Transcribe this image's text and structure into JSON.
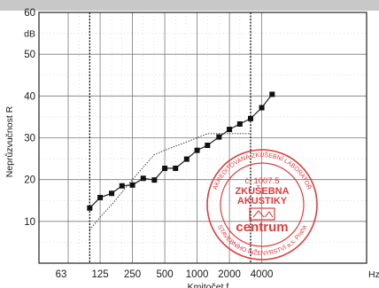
{
  "chart_data": {
    "type": "line",
    "xlabel": "Kmitočet  f",
    "ylabel": "Neprůzvučnost  R",
    "y_unit": "dB",
    "x_unit": "Hz",
    "x_scale": "log",
    "ylim": [
      0,
      60
    ],
    "xlim": [
      50,
      5000
    ],
    "y_ticks": [
      "10",
      "20",
      "30",
      "40",
      "50",
      "60"
    ],
    "x_ticks": [
      "63",
      "125",
      "250",
      "500",
      "1000",
      "2000",
      "4000"
    ],
    "grid": true,
    "series": [
      {
        "name": "",
        "style": "solid-square-markers",
        "x": [
          100,
          125,
          160,
          200,
          250,
          315,
          400,
          500,
          630,
          800,
          1000,
          1250,
          1600,
          2000,
          2500,
          3150,
          4000,
          5000
        ],
        "y": [
          13.2,
          15.7,
          16.7,
          18.5,
          18.7,
          20.3,
          19.9,
          22.7,
          22.7,
          24.9,
          27.0,
          28.2,
          30.2,
          32.0,
          33.3,
          34.6,
          37.2,
          40.4
        ]
      },
      {
        "name": "",
        "style": "dotted",
        "x": [
          100,
          125,
          160,
          200,
          250,
          315,
          400,
          500,
          630,
          800,
          1000,
          1250,
          1600,
          2000,
          2500,
          3150
        ],
        "y": [
          8,
          11,
          14,
          17,
          20,
          23,
          26,
          27,
          28,
          29,
          30,
          31,
          31,
          31,
          31,
          31
        ]
      }
    ],
    "stamp": {
      "lines": [
        "AKREDITOVANÁ ZKUŠEBNÍ LABORATOŘ",
        "č. 1007.5",
        "ZKUŠEBNA",
        "AKUSTIKY",
        "centrum",
        "STAVEBNÍHO INŽENÝRSTVÍ a.s. Praha"
      ],
      "color": "#e03c3c"
    }
  }
}
